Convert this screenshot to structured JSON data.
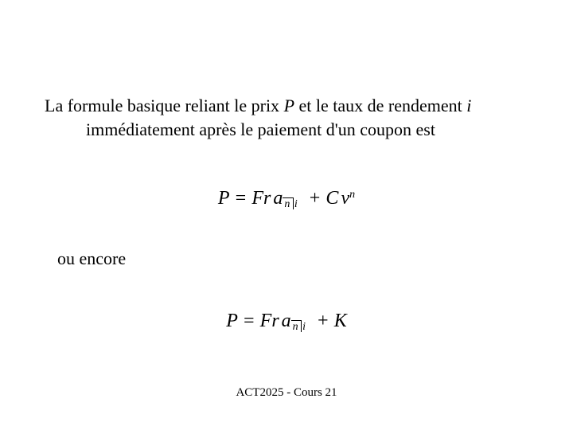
{
  "colors": {
    "background": "#ffffff",
    "text": "#000000"
  },
  "typography": {
    "font_family": "Times New Roman",
    "body_fontsize_pt": 22,
    "formula_fontsize_pt": 24,
    "footer_fontsize_pt": 15
  },
  "intro": {
    "pre": "La formule basique reliant le prix ",
    "var_P": "P",
    "mid": " et le taux de rendement ",
    "var_i": "i",
    "line2": "immédiatement après le paiement d'un coupon est"
  },
  "formula1": {
    "lhs": "P",
    "eq": " = ",
    "term1_a": "Fr",
    "term1_b": "a",
    "angle_n": "n",
    "angle_i": "i",
    "plus": " + ",
    "term2_a": "C",
    "term2_b": "ν",
    "exp_n": "n",
    "latex": "P = Fr\\,a_{\\overline{n}|\\,i} + C\\,\\nu^{n}"
  },
  "connector": "ou encore",
  "formula2": {
    "lhs": "P",
    "eq": " = ",
    "term1_a": "Fr",
    "term1_b": "a",
    "angle_n": "n",
    "angle_i": "i",
    "plus": " + ",
    "term2": "K",
    "latex": "P = Fr\\,a_{\\overline{n}|\\,i} + K"
  },
  "footer": "ACT2025 - Cours 21"
}
